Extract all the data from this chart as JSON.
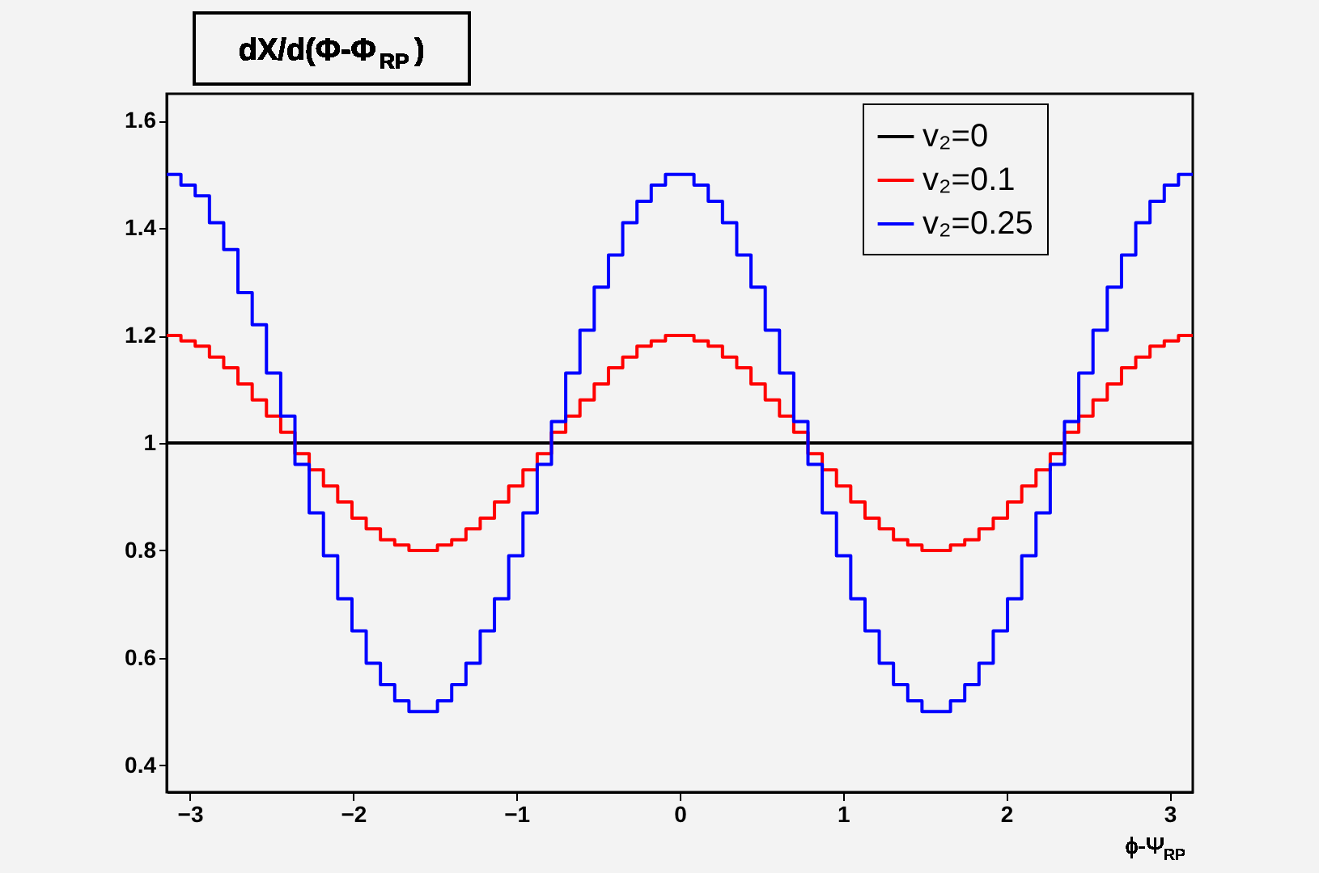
{
  "chart_data": {
    "type": "histogram",
    "ylabel": "dX/d(Φ-Φ$_{RP}$)",
    "xlabel": "ϕ-Ψ$_{RP}$",
    "bins": [
      -3.1416,
      -3.0543,
      -2.9671,
      -2.8798,
      -2.7925,
      -2.7053,
      -2.618,
      -2.5307,
      -2.4435,
      -2.3562,
      -2.2689,
      -2.1817,
      -2.0944,
      -2.0071,
      -1.9199,
      -1.8326,
      -1.7453,
      -1.6581,
      -1.5708,
      -1.4835,
      -1.3963,
      -1.309,
      -1.2217,
      -1.1345,
      -1.0472,
      -0.9599,
      -0.8727,
      -0.7854,
      -0.6981,
      -0.6109,
      -0.5236,
      -0.4363,
      -0.3491,
      -0.2618,
      -0.1745,
      -0.0873,
      0,
      0.0873,
      0.1745,
      0.2618,
      0.3491,
      0.4363,
      0.5236,
      0.6109,
      0.6981,
      0.7854,
      0.8727,
      0.9599,
      1.0472,
      1.1345,
      1.2217,
      1.309,
      1.3963,
      1.4835,
      1.5708,
      1.6581,
      1.7453,
      1.8326,
      1.9199,
      2.0071,
      2.0944,
      2.1817,
      2.2689,
      2.3562,
      2.4435,
      2.5307,
      2.618,
      2.7053,
      2.7925,
      2.8798,
      2.9671,
      3.0543,
      3.1416
    ],
    "series": [
      {
        "name": "v₂=0",
        "color": "#000000",
        "values": [
          1,
          1,
          1,
          1,
          1,
          1,
          1,
          1,
          1,
          1,
          1,
          1,
          1,
          1,
          1,
          1,
          1,
          1,
          1,
          1,
          1,
          1,
          1,
          1,
          1,
          1,
          1,
          1,
          1,
          1,
          1,
          1,
          1,
          1,
          1,
          1,
          1,
          1,
          1,
          1,
          1,
          1,
          1,
          1,
          1,
          1,
          1,
          1,
          1,
          1,
          1,
          1,
          1,
          1,
          1,
          1,
          1,
          1,
          1,
          1,
          1,
          1,
          1,
          1,
          1,
          1,
          1,
          1,
          1,
          1,
          1,
          1
        ]
      },
      {
        "name": "v₂=0.1",
        "color": "#ff0000",
        "values": [
          1.2,
          1.19,
          1.18,
          1.16,
          1.14,
          1.11,
          1.08,
          1.05,
          1.02,
          0.98,
          0.95,
          0.92,
          0.89,
          0.86,
          0.84,
          0.82,
          0.81,
          0.8,
          0.8,
          0.81,
          0.82,
          0.84,
          0.86,
          0.89,
          0.92,
          0.95,
          0.98,
          1.02,
          1.05,
          1.08,
          1.11,
          1.14,
          1.16,
          1.18,
          1.19,
          1.2,
          1.2,
          1.19,
          1.18,
          1.16,
          1.14,
          1.11,
          1.08,
          1.05,
          1.02,
          0.98,
          0.95,
          0.92,
          0.89,
          0.86,
          0.84,
          0.82,
          0.81,
          0.8,
          0.8,
          0.81,
          0.82,
          0.84,
          0.86,
          0.89,
          0.92,
          0.95,
          0.98,
          1.02,
          1.05,
          1.08,
          1.11,
          1.14,
          1.16,
          1.18,
          1.19,
          1.2
        ]
      },
      {
        "name": "v₂=0.25",
        "color": "#0000ff",
        "values": [
          1.5,
          1.48,
          1.46,
          1.41,
          1.36,
          1.28,
          1.22,
          1.13,
          1.05,
          0.96,
          0.87,
          0.79,
          0.71,
          0.65,
          0.59,
          0.55,
          0.52,
          0.5,
          0.5,
          0.52,
          0.55,
          0.59,
          0.65,
          0.71,
          0.79,
          0.87,
          0.96,
          1.04,
          1.13,
          1.21,
          1.29,
          1.35,
          1.41,
          1.45,
          1.48,
          1.5,
          1.5,
          1.48,
          1.45,
          1.41,
          1.35,
          1.29,
          1.21,
          1.13,
          1.04,
          0.96,
          0.87,
          0.79,
          0.71,
          0.65,
          0.59,
          0.55,
          0.52,
          0.5,
          0.5,
          0.52,
          0.55,
          0.59,
          0.65,
          0.71,
          0.79,
          0.87,
          0.96,
          1.04,
          1.13,
          1.21,
          1.29,
          1.35,
          1.41,
          1.45,
          1.48,
          1.5
        ]
      }
    ],
    "xlim": [
      -3.1416,
      3.1416
    ],
    "xticks": [
      -3,
      -2,
      -1,
      0,
      1,
      2,
      3
    ],
    "ylim": [
      0.35,
      1.65
    ],
    "yticks": [
      0.4,
      0.6,
      0.8,
      1,
      1.2,
      1.4,
      1.6
    ],
    "grid": false,
    "legend": "top right"
  }
}
